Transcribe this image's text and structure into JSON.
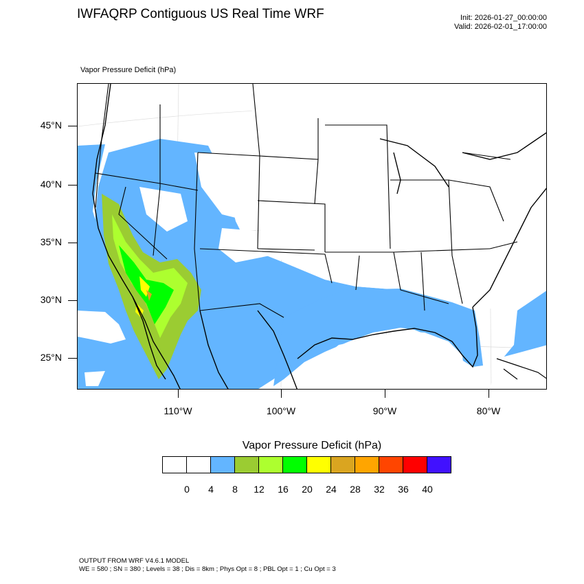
{
  "header": {
    "title": "IWFAQRP Contiguous US Real Time WRF",
    "init": "Init: 2026-01-27_00:00:00",
    "valid": "Valid: 2026-02-01_17:00:00"
  },
  "map": {
    "field_label": "Vapor Pressure Deficit   (hPa)",
    "lat_labels": [
      "45°N",
      "40°N",
      "35°N",
      "30°N",
      "25°N"
    ],
    "lon_labels": [
      "110°W",
      "100°W",
      "90°W",
      "80°W"
    ]
  },
  "colorbar": {
    "title": "Vapor Pressure Deficit  (hPa)",
    "colors": [
      "#ffffff",
      "#ffffff",
      "#63b5ff",
      "#9bcc32",
      "#adff2f",
      "#00ff00",
      "#ffff00",
      "#daa520",
      "#ffa500",
      "#ff4500",
      "#ff0000",
      "#4111ff"
    ],
    "labels": [
      "0",
      "4",
      "8",
      "12",
      "16",
      "20",
      "24",
      "28",
      "32",
      "36",
      "40"
    ]
  },
  "footer": {
    "line1": "OUTPUT FROM WRF V4.6.1 MODEL",
    "line2": "WE = 580 ; SN = 380 ; Levels = 38 ; Dis = 8km ; Phys Opt = 8 ; PBL Opt = 1 ; Cu Opt = 3"
  }
}
